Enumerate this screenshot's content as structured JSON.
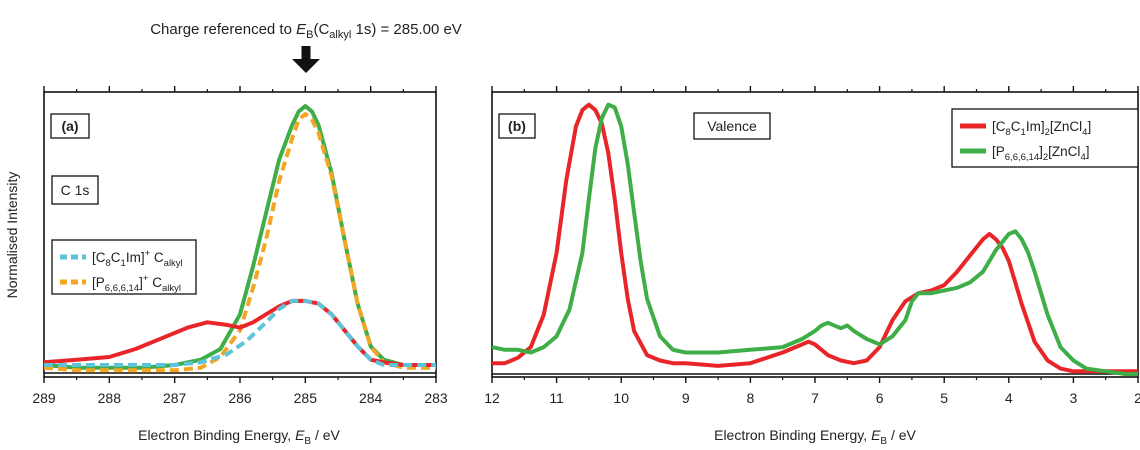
{
  "figure": {
    "annotation": {
      "pre": "Charge referenced to ",
      "sym": "E",
      "symSub": "B",
      "open": "(C",
      "cSub": "alkyl",
      "post": " 1s) = 285.00 eV"
    },
    "ylabel": "Normalised Intensity",
    "xlabel": {
      "pre": "Electron Binding Energy, ",
      "sym": "E",
      "sub": "B",
      "post": " / eV"
    }
  },
  "colors": {
    "red": "#e8262a",
    "green": "#3fae49",
    "blue": "#5cc3d8",
    "orange": "#f2a623",
    "frame": "#111111"
  },
  "chart_data": [
    {
      "type": "line",
      "panel_label": "(a)",
      "annotation_box": "C 1s",
      "xlim": [
        289,
        283
      ],
      "x_reversed": true,
      "xticks": [
        289,
        288,
        287,
        286,
        285,
        284,
        283
      ],
      "xtick_labels": [
        "289",
        "288",
        "287",
        "286",
        "285",
        "284",
        "283"
      ],
      "ylim": [
        0,
        1.0
      ],
      "yticks_visible": false,
      "grid": false,
      "legend_position": "middle-left",
      "legend": [
        {
          "name_parts": [
            [
              "[C",
              ""
            ],
            [
              "8",
              "sub"
            ],
            [
              "C",
              ""
            ],
            [
              "1",
              "sub"
            ],
            [
              "Im]",
              ""
            ],
            [
              "+",
              "sup"
            ],
            [
              " C",
              ""
            ],
            [
              "alkyl",
              "sub"
            ]
          ],
          "color": "blue",
          "style": "dashed"
        },
        {
          "name_parts": [
            [
              "[P",
              ""
            ],
            [
              "6,6,6,14",
              "sub"
            ],
            [
              "]",
              ""
            ],
            [
              "+",
              "sup"
            ],
            [
              " C",
              ""
            ],
            [
              "alkyl",
              "sub"
            ]
          ],
          "color": "orange",
          "style": "dashed"
        }
      ],
      "series": [
        {
          "id": "a-green",
          "color": "green",
          "style": "solid",
          "x": [
            289,
            288.5,
            288,
            287.5,
            287,
            286.6,
            286.3,
            286,
            285.8,
            285.6,
            285.4,
            285.2,
            285.1,
            285,
            284.9,
            284.8,
            284.6,
            284.4,
            284.2,
            284,
            283.8,
            283.5,
            283
          ],
          "y": [
            0.03,
            0.02,
            0.02,
            0.02,
            0.03,
            0.05,
            0.09,
            0.22,
            0.4,
            0.6,
            0.8,
            0.93,
            0.98,
            1.0,
            0.98,
            0.93,
            0.75,
            0.5,
            0.26,
            0.1,
            0.05,
            0.03,
            0.03
          ]
        },
        {
          "id": "a-orange",
          "color": "orange",
          "style": "dashed",
          "x": [
            289,
            288.5,
            288,
            287.5,
            287,
            286.6,
            286.3,
            286,
            285.8,
            285.6,
            285.4,
            285.2,
            285.1,
            285,
            284.9,
            284.8,
            284.6,
            284.4,
            284.2,
            284,
            283.8,
            283.5,
            283
          ],
          "y": [
            0.02,
            0.01,
            0.01,
            0.01,
            0.01,
            0.02,
            0.06,
            0.16,
            0.32,
            0.5,
            0.72,
            0.88,
            0.95,
            0.97,
            0.95,
            0.9,
            0.74,
            0.5,
            0.26,
            0.1,
            0.04,
            0.02,
            0.02
          ]
        },
        {
          "id": "a-red",
          "color": "red",
          "style": "solid",
          "x": [
            289,
            288.5,
            288,
            287.6,
            287.2,
            286.8,
            286.5,
            286.2,
            286,
            285.8,
            285.6,
            285.4,
            285.2,
            285,
            284.8,
            284.6,
            284.4,
            284.2,
            284,
            283.8,
            283.5,
            283
          ],
          "y": [
            0.04,
            0.05,
            0.06,
            0.09,
            0.13,
            0.17,
            0.19,
            0.18,
            0.17,
            0.19,
            0.22,
            0.25,
            0.27,
            0.27,
            0.26,
            0.22,
            0.16,
            0.1,
            0.05,
            0.04,
            0.03,
            0.03
          ]
        },
        {
          "id": "a-blue",
          "color": "blue",
          "style": "dashed",
          "x": [
            289,
            288.5,
            288,
            287.5,
            287,
            286.6,
            286.2,
            285.9,
            285.6,
            285.4,
            285.2,
            285,
            284.8,
            284.6,
            284.4,
            284.2,
            284,
            283.8,
            283.5,
            283
          ],
          "y": [
            0.03,
            0.03,
            0.03,
            0.03,
            0.03,
            0.04,
            0.07,
            0.12,
            0.19,
            0.24,
            0.27,
            0.27,
            0.26,
            0.22,
            0.16,
            0.1,
            0.05,
            0.03,
            0.03,
            0.03
          ]
        }
      ]
    },
    {
      "type": "line",
      "panel_label": "(b)",
      "annotation_box": "Valence",
      "xlim": [
        12,
        2
      ],
      "x_reversed": true,
      "xticks": [
        12,
        11,
        10,
        9,
        8,
        7,
        6,
        5,
        4,
        3,
        2
      ],
      "xtick_labels": [
        "12",
        "11",
        "10",
        "9",
        "8",
        "7",
        "6",
        "5",
        "4",
        "3",
        "2"
      ],
      "ylim": [
        0,
        1.0
      ],
      "yticks_visible": false,
      "grid": false,
      "legend_position": "top-right",
      "legend": [
        {
          "name_parts": [
            [
              "[C",
              ""
            ],
            [
              "8",
              "sub"
            ],
            [
              "C",
              ""
            ],
            [
              "1",
              "sub"
            ],
            [
              "Im]",
              ""
            ],
            [
              "2",
              "sub"
            ],
            [
              "[ZnCl",
              ""
            ],
            [
              "4",
              "sub"
            ],
            [
              "]",
              ""
            ]
          ],
          "color": "red",
          "style": "solid"
        },
        {
          "name_parts": [
            [
              "[P",
              ""
            ],
            [
              "6,6,6,14",
              "sub"
            ],
            [
              "]",
              ""
            ],
            [
              "2",
              "sub"
            ],
            [
              "[ZnCl",
              ""
            ],
            [
              "4",
              "sub"
            ],
            [
              "]",
              ""
            ]
          ],
          "color": "green",
          "style": "solid"
        }
      ],
      "series": [
        {
          "id": "b-red",
          "color": "red",
          "style": "solid",
          "x": [
            12,
            11.8,
            11.6,
            11.4,
            11.2,
            11,
            10.85,
            10.7,
            10.6,
            10.5,
            10.4,
            10.3,
            10.2,
            10.1,
            10,
            9.9,
            9.8,
            9.6,
            9.4,
            9.2,
            9,
            8.5,
            8,
            7.5,
            7.3,
            7.1,
            7,
            6.9,
            6.8,
            6.6,
            6.4,
            6.2,
            6,
            5.8,
            5.6,
            5.4,
            5.2,
            5,
            4.8,
            4.6,
            4.4,
            4.3,
            4.2,
            4.1,
            4,
            3.9,
            3.8,
            3.6,
            3.4,
            3.2,
            3,
            2.5,
            2
          ],
          "y": [
            0.04,
            0.04,
            0.06,
            0.1,
            0.22,
            0.45,
            0.72,
            0.92,
            0.98,
            1.0,
            0.98,
            0.93,
            0.82,
            0.65,
            0.45,
            0.28,
            0.16,
            0.07,
            0.05,
            0.04,
            0.04,
            0.03,
            0.04,
            0.08,
            0.1,
            0.12,
            0.11,
            0.09,
            0.07,
            0.05,
            0.04,
            0.05,
            0.1,
            0.2,
            0.27,
            0.3,
            0.31,
            0.33,
            0.38,
            0.44,
            0.5,
            0.52,
            0.5,
            0.47,
            0.42,
            0.34,
            0.26,
            0.12,
            0.05,
            0.02,
            0.01,
            0.01,
            0.01
          ]
        },
        {
          "id": "b-green",
          "color": "green",
          "style": "solid",
          "x": [
            12,
            11.8,
            11.6,
            11.4,
            11.2,
            11,
            10.8,
            10.6,
            10.5,
            10.4,
            10.3,
            10.2,
            10.1,
            10,
            9.9,
            9.8,
            9.7,
            9.6,
            9.4,
            9.2,
            9,
            8.5,
            8,
            7.5,
            7.2,
            7,
            6.9,
            6.8,
            6.6,
            6.5,
            6.4,
            6.2,
            6,
            5.8,
            5.6,
            5.5,
            5.4,
            5.2,
            5,
            4.8,
            4.6,
            4.4,
            4.2,
            4,
            3.9,
            3.8,
            3.7,
            3.6,
            3.4,
            3.2,
            3,
            2.8,
            2.5,
            2.2,
            2
          ],
          "y": [
            0.1,
            0.09,
            0.09,
            0.08,
            0.1,
            0.14,
            0.24,
            0.45,
            0.65,
            0.84,
            0.95,
            1.0,
            0.99,
            0.92,
            0.78,
            0.6,
            0.42,
            0.28,
            0.14,
            0.09,
            0.08,
            0.08,
            0.09,
            0.1,
            0.13,
            0.16,
            0.18,
            0.19,
            0.17,
            0.18,
            0.16,
            0.13,
            0.11,
            0.14,
            0.2,
            0.27,
            0.3,
            0.3,
            0.31,
            0.32,
            0.34,
            0.38,
            0.46,
            0.52,
            0.53,
            0.5,
            0.45,
            0.38,
            0.22,
            0.1,
            0.05,
            0.02,
            0.01,
            0.0,
            0.0
          ]
        }
      ]
    }
  ]
}
